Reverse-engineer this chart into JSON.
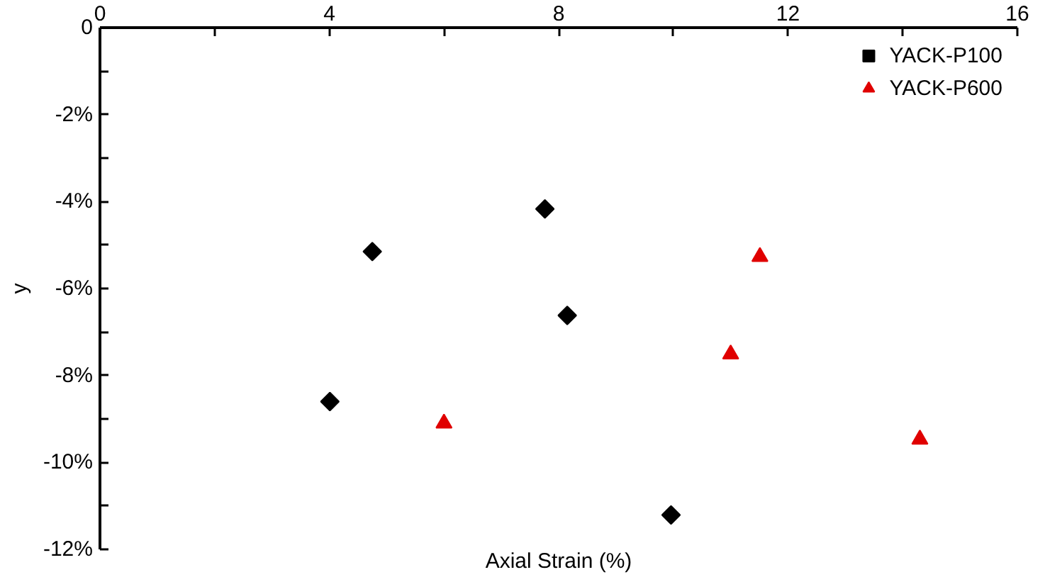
{
  "chart_data": {
    "type": "scatter",
    "xlabel": "Axial Strain (%)",
    "ylabel": "y",
    "xlim": [
      0,
      16
    ],
    "xticks": [
      0,
      {
        "value": 2,
        "label": null
      },
      4,
      {
        "value": 6,
        "label": null
      },
      8,
      {
        "value": 10,
        "label": null
      },
      12,
      {
        "value": 14,
        "label": null
      },
      16
    ],
    "ylim": [
      -12,
      0
    ],
    "yticks": [
      0,
      {
        "value": -1,
        "label": null
      },
      {
        "value": -2,
        "label": "-2%"
      },
      {
        "value": -3,
        "label": null
      },
      {
        "value": -4,
        "label": "-4%"
      },
      {
        "value": -5,
        "label": null
      },
      {
        "value": -6,
        "label": "-6%"
      },
      {
        "value": -7,
        "label": null
      },
      {
        "value": -8,
        "label": "-8%"
      },
      {
        "value": -9,
        "label": null
      },
      {
        "value": -10,
        "label": "-10%"
      },
      {
        "value": -11,
        "label": null
      },
      {
        "value": -12,
        "label": "-12%"
      }
    ],
    "legend": "top right",
    "grid": false,
    "series": [
      {
        "name": "YACK-P100",
        "color": "#000000",
        "marker": "diamond",
        "x": [
          7.76,
          4.75,
          8.15,
          4.01,
          9.96
        ],
        "values": [
          -4.17,
          -5.15,
          -6.62,
          -8.6,
          -11.21
        ]
      },
      {
        "name": "YACK-P600",
        "color": "#e00000",
        "marker": "triangle",
        "x": [
          11.51,
          11.0,
          6.0,
          14.3
        ],
        "values": [
          -5.27,
          -7.51,
          -9.1,
          -9.47
        ]
      }
    ]
  }
}
